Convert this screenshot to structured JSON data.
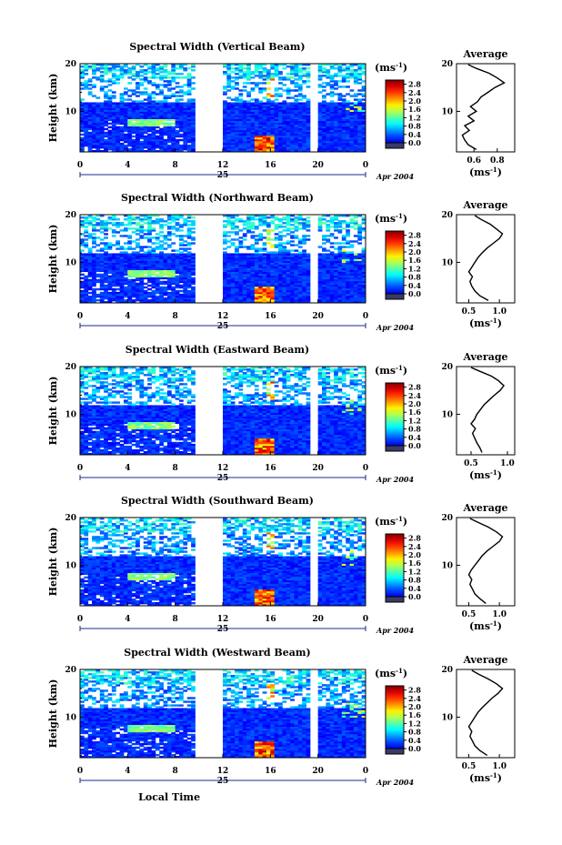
{
  "chart_data": {
    "type": "heatmap",
    "x_label": "Local Time",
    "y_label": "Height (km)",
    "colorbar_unit": "(ms",
    "colorbar_exponent": "-1",
    "colorbar_ticks": [
      "0.0",
      "0.4",
      "0.8",
      "1.2",
      "1.6",
      "2.0",
      "2.4",
      "2.8"
    ],
    "colorbar_range": [
      0,
      3.0
    ],
    "x_ticks": [
      "0",
      "4",
      "8",
      "12",
      "16",
      "20",
      "0"
    ],
    "x_range_hours": [
      0,
      24
    ],
    "y_ticks": [
      "10",
      "20"
    ],
    "y_range_km": [
      1.5,
      20
    ],
    "date_day": "25",
    "date_label": "Apr 2004",
    "gaps_hours": [
      [
        9.8,
        12.0
      ],
      [
        19.5,
        19.9
      ]
    ],
    "average_title": "Average",
    "average_ylabel_unit": "(ms",
    "panels": [
      {
        "title": "Spectral Width (Vertical Beam)",
        "average_xticks": [
          "0.6",
          "0.8"
        ],
        "average_xrange": [
          0.45,
          0.95
        ],
        "average_profile": [
          {
            "h": 2.0,
            "v": 0.62
          },
          {
            "h": 3.0,
            "v": 0.55
          },
          {
            "h": 4.0,
            "v": 0.52
          },
          {
            "h": 5.0,
            "v": 0.5
          },
          {
            "h": 6.0,
            "v": 0.56
          },
          {
            "h": 7.0,
            "v": 0.52
          },
          {
            "h": 8.0,
            "v": 0.6
          },
          {
            "h": 9.0,
            "v": 0.55
          },
          {
            "h": 10.0,
            "v": 0.62
          },
          {
            "h": 11.0,
            "v": 0.57
          },
          {
            "h": 12.0,
            "v": 0.63
          },
          {
            "h": 13.0,
            "v": 0.66
          },
          {
            "h": 14.0,
            "v": 0.72
          },
          {
            "h": 15.0,
            "v": 0.78
          },
          {
            "h": 16.0,
            "v": 0.86
          },
          {
            "h": 17.0,
            "v": 0.8
          },
          {
            "h": 18.0,
            "v": 0.73
          },
          {
            "h": 19.0,
            "v": 0.62
          },
          {
            "h": 19.8,
            "v": 0.55
          }
        ]
      },
      {
        "title": "Spectral Width (Northward Beam)",
        "average_xticks": [
          "0.5",
          "1.0"
        ],
        "average_xrange": [
          0.3,
          1.25
        ],
        "average_profile": [
          {
            "h": 2.0,
            "v": 0.82
          },
          {
            "h": 3.0,
            "v": 0.68
          },
          {
            "h": 4.0,
            "v": 0.6
          },
          {
            "h": 5.0,
            "v": 0.55
          },
          {
            "h": 6.0,
            "v": 0.52
          },
          {
            "h": 7.0,
            "v": 0.56
          },
          {
            "h": 8.0,
            "v": 0.5
          },
          {
            "h": 9.0,
            "v": 0.55
          },
          {
            "h": 10.0,
            "v": 0.6
          },
          {
            "h": 11.0,
            "v": 0.65
          },
          {
            "h": 12.0,
            "v": 0.72
          },
          {
            "h": 13.0,
            "v": 0.8
          },
          {
            "h": 14.0,
            "v": 0.9
          },
          {
            "h": 15.0,
            "v": 1.0
          },
          {
            "h": 16.0,
            "v": 1.05
          },
          {
            "h": 17.0,
            "v": 0.95
          },
          {
            "h": 18.0,
            "v": 0.85
          },
          {
            "h": 19.0,
            "v": 0.7
          },
          {
            "h": 19.8,
            "v": 0.6
          }
        ]
      },
      {
        "title": "Spectral Width (Eastward Beam)",
        "average_xticks": [
          "0.5",
          "1.0"
        ],
        "average_xrange": [
          0.3,
          1.1
        ],
        "average_profile": [
          {
            "h": 2.0,
            "v": 0.65
          },
          {
            "h": 3.0,
            "v": 0.62
          },
          {
            "h": 4.0,
            "v": 0.58
          },
          {
            "h": 5.0,
            "v": 0.55
          },
          {
            "h": 6.0,
            "v": 0.52
          },
          {
            "h": 7.0,
            "v": 0.56
          },
          {
            "h": 8.0,
            "v": 0.5
          },
          {
            "h": 9.0,
            "v": 0.55
          },
          {
            "h": 10.0,
            "v": 0.58
          },
          {
            "h": 11.0,
            "v": 0.63
          },
          {
            "h": 12.0,
            "v": 0.68
          },
          {
            "h": 13.0,
            "v": 0.75
          },
          {
            "h": 14.0,
            "v": 0.82
          },
          {
            "h": 15.0,
            "v": 0.9
          },
          {
            "h": 16.0,
            "v": 0.95
          },
          {
            "h": 17.0,
            "v": 0.88
          },
          {
            "h": 18.0,
            "v": 0.78
          },
          {
            "h": 19.0,
            "v": 0.62
          },
          {
            "h": 19.8,
            "v": 0.5
          }
        ]
      },
      {
        "title": "Spectral Width (Southward Beam)",
        "average_xticks": [
          "0.5",
          "1.0"
        ],
        "average_xrange": [
          0.3,
          1.25
        ],
        "average_profile": [
          {
            "h": 2.0,
            "v": 0.78
          },
          {
            "h": 3.0,
            "v": 0.68
          },
          {
            "h": 4.0,
            "v": 0.6
          },
          {
            "h": 5.0,
            "v": 0.56
          },
          {
            "h": 6.0,
            "v": 0.52
          },
          {
            "h": 7.0,
            "v": 0.55
          },
          {
            "h": 8.0,
            "v": 0.5
          },
          {
            "h": 9.0,
            "v": 0.54
          },
          {
            "h": 10.0,
            "v": 0.6
          },
          {
            "h": 11.0,
            "v": 0.66
          },
          {
            "h": 12.0,
            "v": 0.72
          },
          {
            "h": 13.0,
            "v": 0.8
          },
          {
            "h": 14.0,
            "v": 0.9
          },
          {
            "h": 15.0,
            "v": 1.0
          },
          {
            "h": 16.0,
            "v": 1.05
          },
          {
            "h": 17.0,
            "v": 0.95
          },
          {
            "h": 18.0,
            "v": 0.82
          },
          {
            "h": 19.0,
            "v": 0.65
          },
          {
            "h": 19.8,
            "v": 0.52
          }
        ]
      },
      {
        "title": "Spectral Width (Westward Beam)",
        "average_xticks": [
          "0.5",
          "1.0"
        ],
        "average_xrange": [
          0.3,
          1.25
        ],
        "average_profile": [
          {
            "h": 2.0,
            "v": 0.8
          },
          {
            "h": 3.0,
            "v": 0.68
          },
          {
            "h": 4.0,
            "v": 0.6
          },
          {
            "h": 5.0,
            "v": 0.56
          },
          {
            "h": 6.0,
            "v": 0.52
          },
          {
            "h": 7.0,
            "v": 0.55
          },
          {
            "h": 8.0,
            "v": 0.5
          },
          {
            "h": 9.0,
            "v": 0.55
          },
          {
            "h": 10.0,
            "v": 0.6
          },
          {
            "h": 11.0,
            "v": 0.65
          },
          {
            "h": 12.0,
            "v": 0.72
          },
          {
            "h": 13.0,
            "v": 0.8
          },
          {
            "h": 14.0,
            "v": 0.88
          },
          {
            "h": 15.0,
            "v": 0.98
          },
          {
            "h": 16.0,
            "v": 1.05
          },
          {
            "h": 17.0,
            "v": 0.95
          },
          {
            "h": 18.0,
            "v": 0.82
          },
          {
            "h": 19.0,
            "v": 0.66
          },
          {
            "h": 19.8,
            "v": 0.55
          }
        ]
      }
    ]
  }
}
